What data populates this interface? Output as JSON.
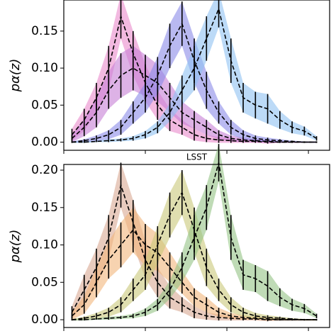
{
  "chart_data": [
    {
      "type": "line",
      "ylabel": "pα(z)",
      "x": [
        0.05,
        0.125,
        0.2,
        0.275,
        0.35,
        0.425,
        0.5,
        0.575,
        0.65,
        0.725,
        0.8,
        0.875,
        0.95,
        1.025,
        1.1,
        1.175,
        1.25,
        1.325,
        1.4,
        1.475,
        1.55
      ],
      "xlim": [
        0,
        1.63
      ],
      "xticks": [
        0,
        0.5,
        1,
        1.5
      ],
      "ylim": [
        -0.011,
        0.192
      ],
      "yticks": [
        {
          "value": 0,
          "label": "0.00"
        },
        {
          "value": 0.05,
          "label": "0.05"
        },
        {
          "value": 0.1,
          "label": "0.10"
        },
        {
          "value": 0.15,
          "label": "0.15"
        }
      ],
      "series": [
        {
          "color": "#e98bcb",
          "values": [
            0.01,
            0.03,
            0.06,
            0.1,
            0.17,
            0.12,
            0.08,
            0.05,
            0.03,
            0.02,
            0.01,
            0.005,
            0.003,
            0.002,
            0.001,
            0.001,
            0,
            0,
            0,
            0,
            0
          ],
          "errors": [
            0.008,
            0.015,
            0.02,
            0.03,
            0.03,
            0.03,
            0.025,
            0.02,
            0.015,
            0.01,
            0.008,
            0.005,
            0.004,
            0.003,
            0.002,
            0.002,
            0.002,
            0.001,
            0.001,
            0.001,
            0.001
          ]
        },
        {
          "color": "#c77fd6",
          "values": [
            0.005,
            0.02,
            0.04,
            0.07,
            0.09,
            0.1,
            0.09,
            0.08,
            0.06,
            0.04,
            0.03,
            0.02,
            0.01,
            0.005,
            0.003,
            0.002,
            0.001,
            0,
            0,
            0,
            0
          ],
          "errors": [
            0.005,
            0.012,
            0.02,
            0.025,
            0.03,
            0.03,
            0.028,
            0.025,
            0.02,
            0.015,
            0.012,
            0.01,
            0.006,
            0.004,
            0.003,
            0.002,
            0.002,
            0.001,
            0.001,
            0.001,
            0.001
          ]
        },
        {
          "color": "#8b8be8",
          "values": [
            0,
            0.002,
            0.005,
            0.01,
            0.02,
            0.04,
            0.06,
            0.09,
            0.13,
            0.16,
            0.11,
            0.07,
            0.04,
            0.02,
            0.01,
            0.005,
            0.003,
            0.002,
            0.001,
            0,
            0
          ],
          "errors": [
            0.001,
            0.002,
            0.004,
            0.006,
            0.01,
            0.015,
            0.02,
            0.025,
            0.03,
            0.03,
            0.03,
            0.025,
            0.015,
            0.01,
            0.006,
            0.004,
            0.003,
            0.002,
            0.001,
            0.001,
            0.001
          ]
        },
        {
          "color": "#8fc1f2",
          "values": [
            0,
            0,
            0.001,
            0.002,
            0.003,
            0.005,
            0.01,
            0.02,
            0.04,
            0.07,
            0.1,
            0.14,
            0.18,
            0.11,
            0.06,
            0.05,
            0.045,
            0.03,
            0.02,
            0.015,
            0.005
          ],
          "errors": [
            0.001,
            0.001,
            0.001,
            0.002,
            0.002,
            0.003,
            0.005,
            0.008,
            0.012,
            0.02,
            0.03,
            0.03,
            0.025,
            0.03,
            0.02,
            0.018,
            0.02,
            0.012,
            0.008,
            0.006,
            0.003
          ]
        }
      ]
    },
    {
      "type": "line",
      "title": "LSST",
      "ylabel": "pα(z)",
      "x": [
        0.05,
        0.125,
        0.2,
        0.275,
        0.35,
        0.425,
        0.5,
        0.575,
        0.65,
        0.725,
        0.8,
        0.875,
        0.95,
        1.025,
        1.1,
        1.175,
        1.25,
        1.325,
        1.4,
        1.475,
        1.55
      ],
      "xlim": [
        0,
        1.63
      ],
      "xticks": [
        0,
        0.5,
        1,
        1.5
      ],
      "ylim": [
        -0.0104,
        0.2076
      ],
      "yticks": [
        {
          "value": 0,
          "label": "0.00"
        },
        {
          "value": 0.05,
          "label": "0.05"
        },
        {
          "value": 0.1,
          "label": "0.10"
        },
        {
          "value": 0.15,
          "label": "0.15"
        },
        {
          "value": 0.2,
          "label": "0.20"
        }
      ],
      "series": [
        {
          "color": "#d9a893",
          "values": [
            0.01,
            0.04,
            0.07,
            0.11,
            0.18,
            0.13,
            0.08,
            0.05,
            0.03,
            0.02,
            0.01,
            0.005,
            0.003,
            0.002,
            0.001,
            0.001,
            0,
            0,
            0,
            0,
            0
          ],
          "errors": [
            0.008,
            0.02,
            0.025,
            0.03,
            0.03,
            0.03,
            0.025,
            0.02,
            0.015,
            0.01,
            0.008,
            0.005,
            0.004,
            0.003,
            0.002,
            0.002,
            0.002,
            0.001,
            0.001,
            0.001,
            0.001
          ]
        },
        {
          "color": "#f2b57c",
          "values": [
            0.005,
            0.02,
            0.05,
            0.08,
            0.1,
            0.12,
            0.1,
            0.09,
            0.07,
            0.05,
            0.03,
            0.02,
            0.01,
            0.005,
            0.003,
            0.002,
            0.001,
            0,
            0,
            0,
            0
          ],
          "errors": [
            0.005,
            0.012,
            0.02,
            0.025,
            0.03,
            0.03,
            0.028,
            0.025,
            0.02,
            0.015,
            0.012,
            0.01,
            0.006,
            0.004,
            0.003,
            0.002,
            0.002,
            0.001,
            0.001,
            0.001,
            0.001
          ]
        },
        {
          "color": "#c9c87a",
          "values": [
            0,
            0.002,
            0.005,
            0.01,
            0.02,
            0.04,
            0.06,
            0.1,
            0.14,
            0.17,
            0.12,
            0.07,
            0.04,
            0.02,
            0.01,
            0.005,
            0.003,
            0.002,
            0.001,
            0,
            0
          ],
          "errors": [
            0.001,
            0.002,
            0.004,
            0.006,
            0.01,
            0.015,
            0.02,
            0.025,
            0.03,
            0.03,
            0.03,
            0.025,
            0.015,
            0.01,
            0.006,
            0.004,
            0.003,
            0.002,
            0.001,
            0.001,
            0.001
          ]
        },
        {
          "color": "#95c385",
          "values": [
            0,
            0,
            0.001,
            0.002,
            0.003,
            0.005,
            0.01,
            0.02,
            0.04,
            0.07,
            0.11,
            0.15,
            0.21,
            0.11,
            0.06,
            0.055,
            0.045,
            0.03,
            0.02,
            0.015,
            0.005
          ],
          "errors": [
            0.001,
            0.001,
            0.001,
            0.002,
            0.002,
            0.003,
            0.005,
            0.008,
            0.012,
            0.02,
            0.03,
            0.03,
            0.025,
            0.03,
            0.02,
            0.018,
            0.02,
            0.012,
            0.008,
            0.006,
            0.003
          ]
        }
      ]
    }
  ]
}
